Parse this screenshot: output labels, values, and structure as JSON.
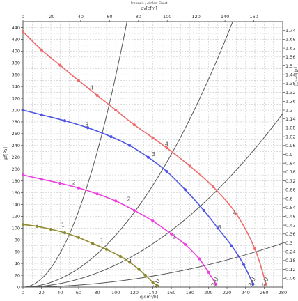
{
  "chart_data": {
    "type": "line",
    "title": "Pressure / Airflow Chart",
    "xlabel": "qv[m³/h]",
    "x2label": "qv[cfm]",
    "ylabel": "pf[Pa]",
    "y2label": "pf[inH₂O]",
    "xlim": [
      0,
      280
    ],
    "x2lim": [
      0,
      180
    ],
    "ylim": [
      0,
      450
    ],
    "y2lim": [
      0,
      1.8
    ],
    "grid": true,
    "x_ticks": [
      "0",
      "20",
      "40",
      "60",
      "80",
      "100",
      "120",
      "140",
      "160",
      "180",
      "200",
      "220",
      "240",
      "260",
      "280"
    ],
    "x2_ticks": [
      "0",
      "20",
      "40",
      "60",
      "80",
      "100",
      "120",
      "140",
      "160"
    ],
    "y_ticks": [
      "0",
      "20",
      "40",
      "60",
      "80",
      "100",
      "120",
      "140",
      "160",
      "180",
      "200",
      "220",
      "240",
      "260",
      "280",
      "300",
      "320",
      "340",
      "360",
      "380",
      "400",
      "420",
      "440"
    ],
    "y2_ticks": [
      "0.06",
      "0.12",
      "0.18",
      "0.24",
      "0.3",
      "0.36",
      "0.42",
      "0.48",
      "0.54",
      "0.6",
      "0.66",
      "0.72",
      "0.78",
      "0.84",
      "0.9",
      "0.96",
      "1.02",
      "1.08",
      "1.14",
      "1.2",
      "1.26",
      "1.32",
      "1.38",
      "1.44",
      "1.5",
      "1.56",
      "1.62",
      "1.68",
      "1.74"
    ],
    "series": [
      {
        "color": "#ef6b6b",
        "end_label": "4-U",
        "points": [
          [
            0,
            433
          ],
          [
            20,
            402
          ],
          [
            40,
            376
          ],
          [
            60,
            350
          ],
          [
            80,
            325
          ],
          [
            100,
            300
          ],
          [
            120,
            275
          ],
          [
            140,
            253
          ],
          [
            155,
            236
          ],
          [
            180,
            205
          ],
          [
            205,
            170
          ],
          [
            230,
            124
          ],
          [
            250,
            65
          ],
          [
            262,
            5
          ]
        ]
      },
      {
        "color": "#4e55e6",
        "end_label": "3-U",
        "points": [
          [
            0,
            300
          ],
          [
            20,
            292
          ],
          [
            45,
            282
          ],
          [
            70,
            270
          ],
          [
            95,
            255
          ],
          [
            115,
            240
          ],
          [
            135,
            220
          ],
          [
            155,
            196
          ],
          [
            175,
            165
          ],
          [
            195,
            130
          ],
          [
            210,
            100
          ],
          [
            225,
            70
          ],
          [
            238,
            38
          ],
          [
            248,
            5
          ]
        ]
      },
      {
        "color": "#ee3fe0",
        "end_label": "2-U",
        "points": [
          [
            0,
            190
          ],
          [
            20,
            183
          ],
          [
            40,
            176
          ],
          [
            60,
            168
          ],
          [
            80,
            158
          ],
          [
            100,
            146
          ],
          [
            120,
            130
          ],
          [
            140,
            112
          ],
          [
            160,
            90
          ],
          [
            175,
            72
          ],
          [
            190,
            48
          ],
          [
            200,
            25
          ],
          [
            208,
            5
          ]
        ]
      },
      {
        "color": "#8f8a2e",
        "end_label": "1-U",
        "points": [
          [
            0,
            106
          ],
          [
            15,
            103
          ],
          [
            30,
            98
          ],
          [
            45,
            92
          ],
          [
            60,
            84
          ],
          [
            75,
            74
          ],
          [
            90,
            64
          ],
          [
            105,
            52
          ],
          [
            115,
            42
          ],
          [
            125,
            30
          ],
          [
            132,
            20
          ],
          [
            140,
            8
          ],
          [
            145,
            2
          ]
        ]
      }
    ],
    "system_curves": [
      {
        "coef": 0.0358
      },
      {
        "coef": 0.0088
      },
      {
        "coef": 0.00375
      },
      {
        "coef": 0.00095
      }
    ],
    "operating_point_labels": [
      {
        "text": "4",
        "x": 74,
        "y": 335
      },
      {
        "text": "3",
        "x": 69,
        "y": 272
      },
      {
        "text": "2",
        "x": 55,
        "y": 174
      },
      {
        "text": "1",
        "x": 43,
        "y": 102
      },
      {
        "text": "4",
        "x": 155,
        "y": 239
      },
      {
        "text": "3",
        "x": 141,
        "y": 222
      },
      {
        "text": "2",
        "x": 114,
        "y": 146
      },
      {
        "text": "1",
        "x": 85,
        "y": 76
      },
      {
        "text": "4",
        "x": 228,
        "y": 122
      },
      {
        "text": "3",
        "x": 212,
        "y": 98
      },
      {
        "text": "2",
        "x": 163,
        "y": 82
      },
      {
        "text": "1",
        "x": 116,
        "y": 40
      }
    ]
  }
}
